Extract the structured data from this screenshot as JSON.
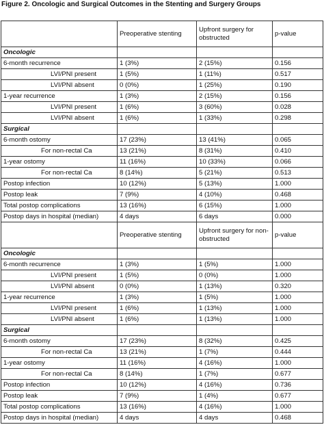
{
  "title": "Figure 2. Oncologic and Surgical Outcomes in the Stenting and Surgery Groups",
  "sections": [
    {
      "header": [
        "Preoperative stenting",
        "Upfront surgery for obstructed",
        "p-value"
      ],
      "groups": [
        {
          "name": "Oncologic",
          "rows": [
            {
              "label": "6-month recurrence",
              "cells": [
                "1 (3%)",
                "2 (15%)",
                "0.156"
              ],
              "sub": [
                {
                  "label": "LVI/PNI present",
                  "cells": [
                    "1 (5%)",
                    "1 (11%)",
                    "0.517"
                  ]
                },
                {
                  "label": "LVI/PNI absent",
                  "cells": [
                    "0 (0%)",
                    "1 (25%)",
                    "0.190"
                  ]
                }
              ]
            },
            {
              "label": "1-year recurrence",
              "cells": [
                "1 (3%)",
                "2 (15%)",
                "0.156"
              ],
              "sub": [
                {
                  "label": "LVI/PNI present",
                  "cells": [
                    "1 (6%)",
                    "3 (60%)",
                    "0.028"
                  ]
                },
                {
                  "label": "LVI/PNI absent",
                  "cells": [
                    "1 (6%)",
                    "1 (33%)",
                    "0.298"
                  ]
                }
              ]
            }
          ]
        },
        {
          "name": "Surgical",
          "rows": [
            {
              "label": "6-month ostomy",
              "cells": [
                "17 (23%)",
                "13 (41%)",
                "0.065"
              ],
              "sub": [
                {
                  "label": "For non-rectal Ca",
                  "cells": [
                    "13 (21%)",
                    "8 (31%)",
                    "0.410"
                  ]
                }
              ]
            },
            {
              "label": "1-year ostomy",
              "cells": [
                "11 (16%)",
                "10 (33%)",
                "0.066"
              ],
              "sub": [
                {
                  "label": "For non-rectal Ca",
                  "cells": [
                    "8 (14%)",
                    "5 (21%)",
                    "0.513"
                  ]
                }
              ]
            },
            {
              "label": "Postop infection",
              "cells": [
                "10 (12%)",
                "5 (13%)",
                "1.000"
              ]
            },
            {
              "label": "Postop leak",
              "cells": [
                "7 (9%)",
                "4 (10%)",
                "0.468"
              ]
            },
            {
              "label": "Total postop complications",
              "cells": [
                "13 (16%)",
                "6 (15%)",
                "1.000"
              ]
            },
            {
              "label": "Postop days in hospital (median)",
              "cells": [
                "4 days",
                "6 days",
                "0.000"
              ]
            }
          ]
        }
      ]
    },
    {
      "header": [
        "Preoperative stenting",
        "Upfront surgery for non-obstructed",
        "p-value"
      ],
      "groups": [
        {
          "name": "Oncologic",
          "rows": [
            {
              "label": "6-month recurrence",
              "cells": [
                "1 (3%)",
                "1 (5%)",
                "1.000"
              ],
              "sub": [
                {
                  "label": "LVI/PNI present",
                  "cells": [
                    "1 (5%)",
                    "0 (0%)",
                    "1.000"
                  ]
                },
                {
                  "label": "LVI/PNI absent",
                  "cells": [
                    "0 (0%)",
                    "1 (13%)",
                    "0.320"
                  ]
                }
              ]
            },
            {
              "label": "1-year recurrence",
              "cells": [
                "1 (3%)",
                "1 (5%)",
                "1.000"
              ],
              "sub": [
                {
                  "label": "LVI/PNI present",
                  "cells": [
                    "1 (6%)",
                    "1 (13%)",
                    "1.000"
                  ]
                },
                {
                  "label": "LVI/PNI absent",
                  "cells": [
                    "1 (6%)",
                    "1 (13%)",
                    "1.000"
                  ]
                }
              ]
            }
          ]
        },
        {
          "name": "Surgical",
          "rows": [
            {
              "label": "6-month ostomy",
              "cells": [
                "17 (23%)",
                "8 (32%)",
                "0.425"
              ],
              "sub": [
                {
                  "label": "For non-rectal Ca",
                  "cells": [
                    "13 (21%)",
                    "1 (7%)",
                    "0.444"
                  ]
                }
              ]
            },
            {
              "label": "1-year ostomy",
              "cells": [
                "11 (16%)",
                "4 (16%)",
                "1.000"
              ],
              "sub": [
                {
                  "label": "For non-rectal Ca",
                  "cells": [
                    "8 (14%)",
                    "1 (7%)",
                    "0.677"
                  ]
                }
              ]
            },
            {
              "label": "Postop infection",
              "cells": [
                "10 (12%)",
                "4 (16%)",
                "0.736"
              ]
            },
            {
              "label": "Postop leak",
              "cells": [
                "7 (9%)",
                "1 (4%)",
                "0.677"
              ]
            },
            {
              "label": "Total postop complications",
              "cells": [
                "13 (16%)",
                "4 (16%)",
                "1.000"
              ]
            },
            {
              "label": "Postop days in hospital (median)",
              "cells": [
                "4 days",
                "4 days",
                "0.468"
              ]
            }
          ]
        }
      ]
    }
  ]
}
